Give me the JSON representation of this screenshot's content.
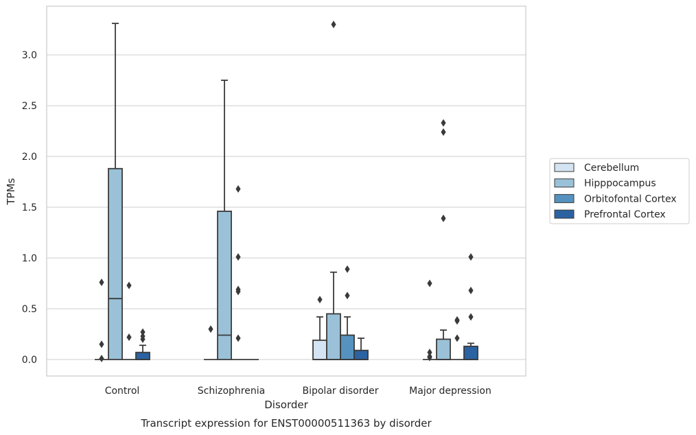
{
  "chart_data": {
    "type": "box",
    "title": "Transcript expression for ENST00000511363 by disorder",
    "xlabel": "Disorder",
    "ylabel": "TPMs",
    "categories": [
      "Control",
      "Schizophrenia",
      "Bipolar disorder",
      "Major depression"
    ],
    "ylim": [
      -0.16,
      3.4
    ],
    "yticks": [
      0.0,
      0.5,
      1.0,
      1.5,
      2.0,
      2.5,
      3.0
    ],
    "ytick_labels": [
      "0.0",
      "0.5",
      "1.0",
      "1.5",
      "2.0",
      "2.5",
      "3.0"
    ],
    "grid": true,
    "legend_position": "right",
    "series": [
      {
        "name": "Cerebellum",
        "color": "#d4e4f2",
        "boxes": [
          {
            "q1": 0,
            "median": 0,
            "q3": 0,
            "whisker_low": 0,
            "whisker_high": 0,
            "outliers": [
              0.76,
              0.15,
              0.01
            ]
          },
          {
            "q1": 0,
            "median": 0,
            "q3": 0,
            "whisker_low": 0,
            "whisker_high": 0,
            "outliers": [
              0.3
            ]
          },
          {
            "q1": 0,
            "median": 0,
            "q3": 0.19,
            "whisker_low": 0,
            "whisker_high": 0.42,
            "outliers": [
              0.59
            ]
          },
          {
            "q1": 0,
            "median": 0,
            "q3": 0,
            "whisker_low": 0,
            "whisker_high": 0,
            "outliers": [
              0.75,
              0.07,
              0.03,
              0.02
            ]
          }
        ]
      },
      {
        "name": "Hipppocampus",
        "color": "#9ac1d8",
        "boxes": [
          {
            "q1": 0,
            "median": 0.6,
            "q3": 1.88,
            "whisker_low": 0,
            "whisker_high": 3.31,
            "outliers": []
          },
          {
            "q1": 0,
            "median": 0.24,
            "q3": 1.46,
            "whisker_low": 0,
            "whisker_high": 2.75,
            "outliers": []
          },
          {
            "q1": 0,
            "median": 0,
            "q3": 0.45,
            "whisker_low": 0,
            "whisker_high": 0.86,
            "outliers": [
              3.3
            ]
          },
          {
            "q1": 0,
            "median": 0,
            "q3": 0.2,
            "whisker_low": 0,
            "whisker_high": 0.29,
            "outliers": [
              2.33,
              2.24,
              1.39
            ]
          }
        ]
      },
      {
        "name": "Orbitofontal Cortex",
        "color": "#5592bf",
        "boxes": [
          {
            "q1": 0,
            "median": 0,
            "q3": 0,
            "whisker_low": 0,
            "whisker_high": 0,
            "outliers": [
              0.73,
              0.22
            ]
          },
          {
            "q1": 0,
            "median": 0,
            "q3": 0,
            "whisker_low": 0,
            "whisker_high": 0,
            "outliers": [
              1.68,
              1.01,
              0.69,
              0.67,
              0.21
            ]
          },
          {
            "q1": 0,
            "median": 0,
            "q3": 0.24,
            "whisker_low": 0,
            "whisker_high": 0.42,
            "outliers": [
              0.89,
              0.63
            ]
          },
          {
            "q1": 0,
            "median": 0,
            "q3": 0,
            "whisker_low": 0,
            "whisker_high": 0,
            "outliers": [
              0.39,
              0.38,
              0.21
            ]
          }
        ]
      },
      {
        "name": "Prefrontal Cortex",
        "color": "#2b62a1",
        "boxes": [
          {
            "q1": 0,
            "median": 0,
            "q3": 0.07,
            "whisker_low": 0,
            "whisker_high": 0.14,
            "outliers": [
              0.27,
              0.23,
              0.2
            ]
          },
          {
            "q1": 0,
            "median": 0,
            "q3": 0,
            "whisker_low": 0,
            "whisker_high": 0,
            "outliers": []
          },
          {
            "q1": 0,
            "median": 0,
            "q3": 0.09,
            "whisker_low": 0,
            "whisker_high": 0.21,
            "outliers": []
          },
          {
            "q1": 0,
            "median": 0,
            "q3": 0.13,
            "whisker_low": 0,
            "whisker_high": 0.16,
            "outliers": [
              1.01,
              0.68,
              0.42
            ]
          }
        ]
      }
    ]
  }
}
